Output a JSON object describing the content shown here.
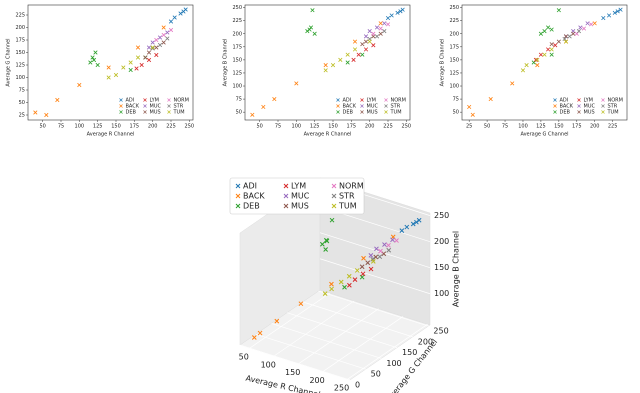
{
  "chart_data": [
    {
      "type": "scatter",
      "x_label": "Average R Channel",
      "y_label": "Average G Channel",
      "xlim": [
        30,
        255
      ],
      "ylim": [
        15,
        245
      ],
      "xticks": [
        50,
        75,
        100,
        125,
        150,
        175,
        200,
        225,
        250
      ],
      "yticks": [
        25,
        50,
        75,
        100,
        125,
        150,
        175,
        200,
        225
      ],
      "legend": "lower right",
      "legend_columns": 3,
      "marker": "x",
      "series": [
        {
          "name": "ADI",
          "color": "#1f77b4",
          "x": [
            230,
            238,
            242,
            225,
            245
          ],
          "y": [
            220,
            228,
            232,
            212,
            236
          ]
        },
        {
          "name": "BACK",
          "color": "#ff7f0e",
          "x": [
            40,
            55,
            70,
            100,
            140,
            180,
            215
          ],
          "y": [
            30,
            25,
            55,
            85,
            120,
            160,
            200
          ]
        },
        {
          "name": "DEB",
          "color": "#2ca02c",
          "x": [
            115,
            120,
            125,
            118,
            122,
            170,
            190
          ],
          "y": [
            130,
            135,
            125,
            140,
            150,
            115,
            140
          ]
        },
        {
          "name": "LYM",
          "color": "#d62728",
          "x": [
            178,
            185,
            195,
            205
          ],
          "y": [
            118,
            125,
            135,
            145
          ]
        },
        {
          "name": "MUC",
          "color": "#9467bd",
          "x": [
            195,
            200,
            210,
            220
          ],
          "y": [
            160,
            170,
            180,
            190
          ]
        },
        {
          "name": "MUS",
          "color": "#8c564b",
          "x": [
            190,
            195,
            205,
            215
          ],
          "y": [
            140,
            150,
            160,
            170
          ]
        },
        {
          "name": "NORM",
          "color": "#e377c2",
          "x": [
            205,
            215,
            225
          ],
          "y": [
            175,
            185,
            195
          ]
        },
        {
          "name": "STR",
          "color": "#7f7f7f",
          "x": [
            200,
            210,
            220
          ],
          "y": [
            158,
            165,
            178
          ]
        },
        {
          "name": "TUM",
          "color": "#bcbd22",
          "x": [
            140,
            150,
            160,
            170,
            180,
            200
          ],
          "y": [
            100,
            105,
            120,
            130,
            140,
            160
          ]
        }
      ]
    },
    {
      "type": "scatter",
      "x_label": "Average R Channel",
      "y_label": "Average B Channel",
      "xlim": [
        30,
        255
      ],
      "ylim": [
        35,
        255
      ],
      "xticks": [
        50,
        75,
        100,
        125,
        150,
        175,
        200,
        225,
        250
      ],
      "yticks": [
        50,
        75,
        100,
        125,
        150,
        175,
        200,
        225,
        250
      ],
      "legend": "lower right",
      "legend_columns": 3,
      "marker": "x",
      "series": [
        {
          "name": "ADI",
          "color": "#1f77b4",
          "x": [
            230,
            238,
            242,
            225,
            245
          ],
          "y": [
            235,
            240,
            243,
            230,
            246
          ]
        },
        {
          "name": "BACK",
          "color": "#ff7f0e",
          "x": [
            40,
            55,
            70,
            100,
            140,
            180,
            215
          ],
          "y": [
            45,
            60,
            75,
            105,
            140,
            185,
            220
          ]
        },
        {
          "name": "DEB",
          "color": "#2ca02c",
          "x": [
            115,
            120,
            125,
            118,
            122,
            170,
            190
          ],
          "y": [
            205,
            212,
            200,
            208,
            245,
            145,
            160
          ]
        },
        {
          "name": "LYM",
          "color": "#d62728",
          "x": [
            178,
            185,
            195,
            205
          ],
          "y": [
            150,
            160,
            170,
            178
          ]
        },
        {
          "name": "MUC",
          "color": "#9467bd",
          "x": [
            195,
            200,
            210,
            220
          ],
          "y": [
            195,
            205,
            212,
            220
          ]
        },
        {
          "name": "MUS",
          "color": "#8c564b",
          "x": [
            190,
            195,
            205,
            215
          ],
          "y": [
            180,
            185,
            195,
            200
          ]
        },
        {
          "name": "NORM",
          "color": "#e377c2",
          "x": [
            205,
            215,
            225
          ],
          "y": [
            200,
            210,
            218
          ]
        },
        {
          "name": "STR",
          "color": "#7f7f7f",
          "x": [
            200,
            210,
            220
          ],
          "y": [
            190,
            195,
            205
          ]
        },
        {
          "name": "TUM",
          "color": "#bcbd22",
          "x": [
            140,
            150,
            160,
            170,
            180,
            200
          ],
          "y": [
            130,
            140,
            150,
            160,
            170,
            185
          ]
        }
      ]
    },
    {
      "type": "scatter",
      "x_label": "Average G Channel",
      "y_label": "Average B Channel",
      "xlim": [
        15,
        245
      ],
      "ylim": [
        35,
        255
      ],
      "xticks": [
        25,
        50,
        75,
        100,
        125,
        150,
        175,
        200,
        225
      ],
      "yticks": [
        50,
        75,
        100,
        125,
        150,
        175,
        200,
        225,
        250
      ],
      "legend": "lower right",
      "legend_columns": 3,
      "marker": "x",
      "series": [
        {
          "name": "ADI",
          "color": "#1f77b4",
          "x": [
            220,
            228,
            232,
            212,
            236
          ],
          "y": [
            235,
            240,
            243,
            230,
            246
          ]
        },
        {
          "name": "BACK",
          "color": "#ff7f0e",
          "x": [
            30,
            25,
            55,
            85,
            120,
            160,
            200
          ],
          "y": [
            45,
            60,
            75,
            105,
            140,
            185,
            220
          ]
        },
        {
          "name": "DEB",
          "color": "#2ca02c",
          "x": [
            130,
            135,
            125,
            140,
            150,
            115,
            140
          ],
          "y": [
            205,
            212,
            200,
            208,
            245,
            145,
            160
          ]
        },
        {
          "name": "LYM",
          "color": "#d62728",
          "x": [
            118,
            125,
            135,
            145
          ],
          "y": [
            150,
            160,
            170,
            178
          ]
        },
        {
          "name": "MUC",
          "color": "#9467bd",
          "x": [
            160,
            170,
            180,
            190
          ],
          "y": [
            195,
            205,
            212,
            220
          ]
        },
        {
          "name": "MUS",
          "color": "#8c564b",
          "x": [
            140,
            150,
            160,
            170
          ],
          "y": [
            180,
            185,
            195,
            200
          ]
        },
        {
          "name": "NORM",
          "color": "#e377c2",
          "x": [
            175,
            185,
            195
          ],
          "y": [
            200,
            210,
            218
          ]
        },
        {
          "name": "STR",
          "color": "#7f7f7f",
          "x": [
            158,
            165,
            178
          ],
          "y": [
            190,
            195,
            205
          ]
        },
        {
          "name": "TUM",
          "color": "#bcbd22",
          "x": [
            100,
            105,
            120,
            130,
            140,
            160
          ],
          "y": [
            130,
            140,
            150,
            160,
            170,
            185
          ]
        }
      ]
    },
    {
      "type": "scatter3d",
      "x_label": "Average R Channel",
      "y_label": "Average G Channel",
      "z_label": "Average B Channel",
      "xlim": [
        30,
        255
      ],
      "ylim": [
        0,
        255
      ],
      "zlim": [
        40,
        255
      ],
      "xticks": [
        50,
        100,
        150,
        200,
        250
      ],
      "yticks": [
        0,
        50,
        100,
        150,
        200,
        250
      ],
      "zticks": [
        100,
        150,
        200,
        250
      ],
      "legend": "upper left",
      "legend_columns": 3,
      "marker": "x",
      "series": [
        {
          "name": "ADI",
          "color": "#1f77b4",
          "x": [
            230,
            238,
            242,
            225,
            245
          ],
          "y": [
            220,
            228,
            232,
            212,
            236
          ],
          "z": [
            235,
            240,
            243,
            230,
            246
          ]
        },
        {
          "name": "BACK",
          "color": "#ff7f0e",
          "x": [
            40,
            55,
            70,
            100,
            140,
            180,
            215
          ],
          "y": [
            30,
            25,
            55,
            85,
            120,
            160,
            200
          ],
          "z": [
            45,
            60,
            75,
            105,
            140,
            185,
            220
          ]
        },
        {
          "name": "DEB",
          "color": "#2ca02c",
          "x": [
            115,
            120,
            125,
            118,
            122,
            170,
            190
          ],
          "y": [
            130,
            135,
            125,
            140,
            150,
            115,
            140
          ],
          "z": [
            205,
            212,
            200,
            208,
            245,
            145,
            160
          ]
        },
        {
          "name": "LYM",
          "color": "#d62728",
          "x": [
            178,
            185,
            195,
            205
          ],
          "y": [
            118,
            125,
            135,
            145
          ],
          "z": [
            150,
            160,
            170,
            178
          ]
        },
        {
          "name": "MUC",
          "color": "#9467bd",
          "x": [
            195,
            200,
            210,
            220
          ],
          "y": [
            160,
            170,
            180,
            190
          ],
          "z": [
            195,
            205,
            212,
            220
          ]
        },
        {
          "name": "MUS",
          "color": "#8c564b",
          "x": [
            190,
            195,
            205,
            215
          ],
          "y": [
            140,
            150,
            160,
            170
          ],
          "z": [
            180,
            185,
            195,
            200
          ]
        },
        {
          "name": "NORM",
          "color": "#e377c2",
          "x": [
            205,
            215,
            225
          ],
          "y": [
            175,
            185,
            195
          ],
          "z": [
            200,
            210,
            218
          ]
        },
        {
          "name": "STR",
          "color": "#7f7f7f",
          "x": [
            200,
            210,
            220
          ],
          "y": [
            158,
            165,
            178
          ],
          "z": [
            190,
            195,
            205
          ]
        },
        {
          "name": "TUM",
          "color": "#bcbd22",
          "x": [
            140,
            150,
            160,
            170,
            180,
            200
          ],
          "y": [
            100,
            105,
            120,
            130,
            140,
            160
          ],
          "z": [
            130,
            140,
            150,
            160,
            170,
            185
          ]
        }
      ]
    }
  ]
}
